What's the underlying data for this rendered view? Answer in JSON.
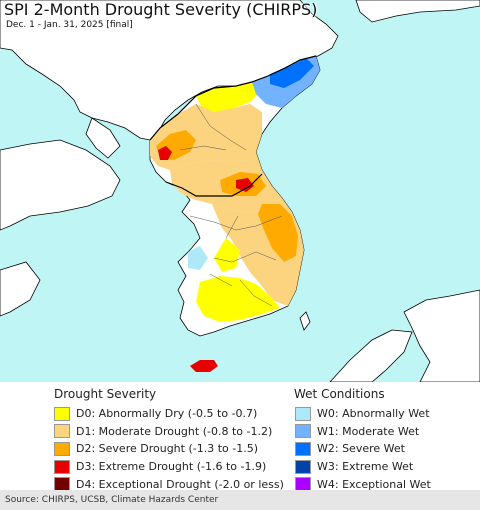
{
  "title": "SPI 2-Month Drought Severity (CHIRPS)",
  "subtitle": "Dec. 1 - Jan. 31, 2025 [final]",
  "map": {
    "sea_color": "#bff5f5",
    "land_color": "#ffffff",
    "border_color": "#000000"
  },
  "legend": {
    "drought": {
      "heading": "Drought Severity",
      "items": [
        {
          "label": "D0: Abnormally Dry (-0.5 to -0.7)",
          "color": "#ffff00"
        },
        {
          "label": "D1: Moderate Drought (-0.8 to -1.2)",
          "color": "#fcd37f"
        },
        {
          "label": "D2: Severe Drought (-1.3 to -1.5)",
          "color": "#ffaa00"
        },
        {
          "label": "D3: Extreme Drought (-1.6 to -1.9)",
          "color": "#e60000"
        },
        {
          "label": "D4: Exceptional Drought (-2.0 or less)",
          "color": "#730000"
        }
      ]
    },
    "wet": {
      "heading": "Wet Conditions",
      "items": [
        {
          "label": "W0: Abnormally Wet",
          "color": "#aee9f9"
        },
        {
          "label": "W1: Moderate Wet",
          "color": "#73b2ff"
        },
        {
          "label": "W2: Severe Wet",
          "color": "#0070ff"
        },
        {
          "label": "W3: Extreme Wet",
          "color": "#0044aa"
        },
        {
          "label": "W4: Exceptional Wet",
          "color": "#aa00ff"
        }
      ]
    }
  },
  "source": "Source: CHIRPS, UCSB, Climate Hazards Center"
}
